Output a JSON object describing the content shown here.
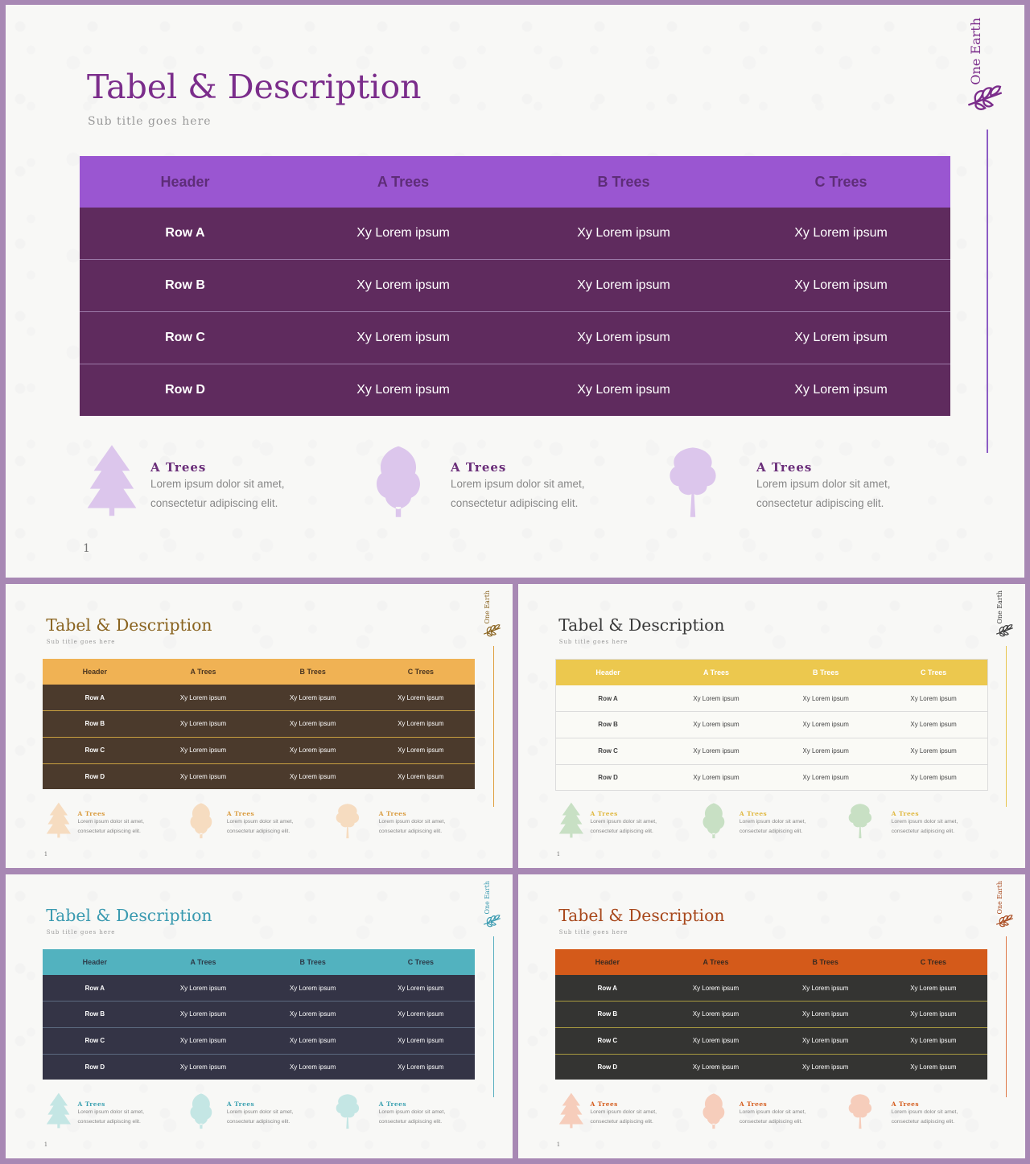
{
  "slides": [
    {
      "title": "Tabel & Description",
      "subtitle": "Sub title goes here",
      "brand": "One Earth",
      "page_number": "1",
      "colors": {
        "title": "#7b2d8b",
        "header_bg": "#9a56d1",
        "header_text": "#5e2d78",
        "row_bg": "#5f2b5e",
        "row_text": "#ffffff",
        "tree": "#dcc6ec",
        "feature_title": "#6b2f7a",
        "accent": "#8c5cc4"
      },
      "table": {
        "headers": [
          "Header",
          "A Trees",
          "B Trees",
          "C Trees"
        ],
        "rows": [
          [
            "Row A",
            "Xy Lorem ipsum",
            "Xy Lorem ipsum",
            "Xy Lorem ipsum"
          ],
          [
            "Row B",
            "Xy Lorem ipsum",
            "Xy Lorem ipsum",
            "Xy Lorem ipsum"
          ],
          [
            "Row C",
            "Xy Lorem ipsum",
            "Xy Lorem ipsum",
            "Xy Lorem ipsum"
          ],
          [
            "Row D",
            "Xy Lorem ipsum",
            "Xy Lorem ipsum",
            "Xy Lorem ipsum"
          ]
        ]
      },
      "features": [
        {
          "title": "A Trees",
          "line1": "Lorem ipsum dolor sit amet,",
          "line2": "consectetur adipiscing elit."
        },
        {
          "title": "A Trees",
          "line1": "Lorem ipsum dolor sit amet,",
          "line2": "consectetur adipiscing elit."
        },
        {
          "title": "A Trees",
          "line1": "Lorem ipsum dolor sit amet,",
          "line2": "consectetur adipiscing elit."
        }
      ]
    },
    {
      "title": "Tabel & Description",
      "subtitle": "Sub title goes here",
      "brand": "One Earth",
      "page_number": "1",
      "colors": {
        "title": "#8a6420",
        "header_bg": "#f0b254",
        "header_text": "#4a3520",
        "row_bg": "#4b3a2c",
        "row_text": "#ffffff",
        "tree": "#f6dcc0",
        "feature_title": "#d99a3c",
        "accent": "#e0a040"
      },
      "table": {
        "headers": [
          "Header",
          "A Trees",
          "B Trees",
          "C Trees"
        ],
        "rows": [
          [
            "Row A",
            "Xy Lorem ipsum",
            "Xy Lorem ipsum",
            "Xy Lorem ipsum"
          ],
          [
            "Row B",
            "Xy Lorem ipsum",
            "Xy Lorem ipsum",
            "Xy Lorem ipsum"
          ],
          [
            "Row C",
            "Xy Lorem ipsum",
            "Xy Lorem ipsum",
            "Xy Lorem ipsum"
          ],
          [
            "Row D",
            "Xy Lorem ipsum",
            "Xy Lorem ipsum",
            "Xy Lorem ipsum"
          ]
        ]
      },
      "features": [
        {
          "title": "A Trees",
          "line1": "Lorem ipsum dolor sit amet,",
          "line2": "consectetur adipiscing elit."
        },
        {
          "title": "A Trees",
          "line1": "Lorem ipsum dolor sit amet,",
          "line2": "consectetur adipiscing elit."
        },
        {
          "title": "A Trees",
          "line1": "Lorem ipsum dolor sit amet,",
          "line2": "consectetur adipiscing elit."
        }
      ]
    },
    {
      "title": "Tabel & Description",
      "subtitle": "Sub title goes here",
      "brand": "One Earth",
      "page_number": "1",
      "colors": {
        "title": "#3a3a3a",
        "header_bg": "#ecc84e",
        "header_text": "#ffffff",
        "row_bg": "#fafaf6",
        "row_text": "#444444",
        "tree": "#c8e0c4",
        "feature_title": "#e0b840",
        "accent": "#e8c650"
      },
      "table": {
        "headers": [
          "Header",
          "A Trees",
          "B Trees",
          "C Trees"
        ],
        "rows": [
          [
            "Row A",
            "Xy Lorem ipsum",
            "Xy Lorem ipsum",
            "Xy Lorem ipsum"
          ],
          [
            "Row B",
            "Xy Lorem ipsum",
            "Xy Lorem ipsum",
            "Xy Lorem ipsum"
          ],
          [
            "Row C",
            "Xy Lorem ipsum",
            "Xy Lorem ipsum",
            "Xy Lorem ipsum"
          ],
          [
            "Row D",
            "Xy Lorem ipsum",
            "Xy Lorem ipsum",
            "Xy Lorem ipsum"
          ]
        ]
      },
      "features": [
        {
          "title": "A Trees",
          "line1": "Lorem ipsum dolor sit amet,",
          "line2": "consectetur adipiscing elit."
        },
        {
          "title": "A Trees",
          "line1": "Lorem ipsum dolor sit amet,",
          "line2": "consectetur adipiscing elit."
        },
        {
          "title": "A Trees",
          "line1": "Lorem ipsum dolor sit amet,",
          "line2": "consectetur adipiscing elit."
        }
      ]
    },
    {
      "title": "Tabel & Description",
      "subtitle": "Sub title goes here",
      "brand": "One Earth",
      "page_number": "1",
      "colors": {
        "title": "#3a9ab0",
        "header_bg": "#52b2bf",
        "header_text": "#2c3a48",
        "row_bg": "#343446",
        "row_text": "#ffffff",
        "tree": "#c4e6e4",
        "feature_title": "#3aa0b0",
        "accent": "#5ab0c0"
      },
      "table": {
        "headers": [
          "Header",
          "A Trees",
          "B Trees",
          "C Trees"
        ],
        "rows": [
          [
            "Row A",
            "Xy Lorem ipsum",
            "Xy Lorem ipsum",
            "Xy Lorem ipsum"
          ],
          [
            "Row B",
            "Xy Lorem ipsum",
            "Xy Lorem ipsum",
            "Xy Lorem ipsum"
          ],
          [
            "Row C",
            "Xy Lorem ipsum",
            "Xy Lorem ipsum",
            "Xy Lorem ipsum"
          ],
          [
            "Row D",
            "Xy Lorem ipsum",
            "Xy Lorem ipsum",
            "Xy Lorem ipsum"
          ]
        ]
      },
      "features": [
        {
          "title": "A Trees",
          "line1": "Lorem ipsum dolor sit amet,",
          "line2": "consectetur adipiscing elit."
        },
        {
          "title": "A Trees",
          "line1": "Lorem ipsum dolor sit amet,",
          "line2": "consectetur adipiscing elit."
        },
        {
          "title": "A Trees",
          "line1": "Lorem ipsum dolor sit amet,",
          "line2": "consectetur adipiscing elit."
        }
      ]
    },
    {
      "title": "Tabel & Description",
      "subtitle": "Sub title goes here",
      "brand": "One Earth",
      "page_number": "1",
      "colors": {
        "title": "#a8481c",
        "header_bg": "#d45a1a",
        "header_text": "#3a2a20",
        "row_bg": "#343432",
        "row_text": "#ffffff",
        "tree": "#f6cdbb",
        "feature_title": "#d45a1a",
        "accent": "#e07a4a"
      },
      "table": {
        "headers": [
          "Header",
          "A Trees",
          "B Trees",
          "C Trees"
        ],
        "rows": [
          [
            "Row A",
            "Xy Lorem ipsum",
            "Xy Lorem ipsum",
            "Xy Lorem ipsum"
          ],
          [
            "Row B",
            "Xy Lorem ipsum",
            "Xy Lorem ipsum",
            "Xy Lorem ipsum"
          ],
          [
            "Row C",
            "Xy Lorem ipsum",
            "Xy Lorem ipsum",
            "Xy Lorem ipsum"
          ],
          [
            "Row D",
            "Xy Lorem ipsum",
            "Xy Lorem ipsum",
            "Xy Lorem ipsum"
          ]
        ]
      },
      "features": [
        {
          "title": "A Trees",
          "line1": "Lorem ipsum dolor sit amet,",
          "line2": "consectetur adipiscing elit."
        },
        {
          "title": "A Trees",
          "line1": "Lorem ipsum dolor sit amet,",
          "line2": "consectetur adipiscing elit."
        },
        {
          "title": "A Trees",
          "line1": "Lorem ipsum dolor sit amet,",
          "line2": "consectetur adipiscing elit."
        }
      ]
    }
  ]
}
